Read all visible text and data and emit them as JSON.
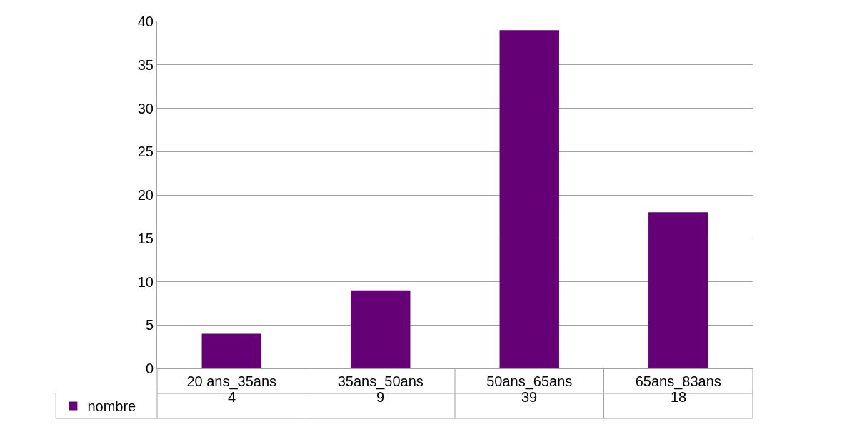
{
  "chart_data": {
    "type": "bar",
    "categories": [
      "20 ans_35ans",
      "35ans_50ans",
      "50ans_65ans",
      "65ans_83ans"
    ],
    "series": [
      {
        "name": "nombre",
        "color": "#660077",
        "values": [
          4,
          9,
          39,
          18
        ]
      }
    ],
    "ylim": [
      0,
      40
    ],
    "yticks": [
      0,
      5,
      10,
      15,
      20,
      25,
      30,
      35,
      40
    ],
    "grid": "y",
    "legend": "bottom left",
    "data_labels": true
  }
}
